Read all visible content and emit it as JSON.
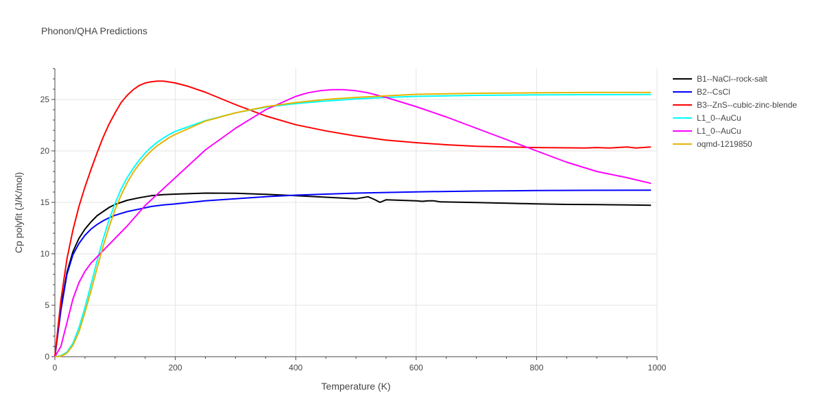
{
  "chart_data": {
    "type": "line",
    "title": "Phonon/QHA Predictions",
    "xlabel": "Temperature (K)",
    "ylabel": "Cp polyfit (J/K/mol)",
    "xlim": [
      0,
      1000
    ],
    "ylim": [
      0,
      28
    ],
    "xticks": [
      0,
      200,
      400,
      600,
      800,
      1000
    ],
    "yticks": [
      0,
      5,
      10,
      15,
      20,
      25
    ],
    "grid": true,
    "legend_position": "top-right",
    "series": [
      {
        "name": "B1--NaCl--rock-salt",
        "color": "#000000",
        "x": [
          0,
          10,
          20,
          30,
          40,
          50,
          60,
          70,
          80,
          90,
          100,
          110,
          120,
          140,
          160,
          180,
          200,
          250,
          300,
          350,
          400,
          450,
          500,
          510,
          520,
          530,
          540,
          550,
          600,
          610,
          620,
          630,
          640,
          700,
          750,
          800,
          850,
          900,
          950,
          990
        ],
        "y": [
          0,
          4.8,
          8.2,
          10.2,
          11.5,
          12.4,
          13.1,
          13.7,
          14.1,
          14.5,
          14.8,
          15.0,
          15.2,
          15.45,
          15.65,
          15.75,
          15.8,
          15.9,
          15.88,
          15.78,
          15.65,
          15.5,
          15.35,
          15.45,
          15.55,
          15.3,
          15.0,
          15.25,
          15.15,
          15.1,
          15.15,
          15.15,
          15.05,
          14.98,
          14.92,
          14.85,
          14.8,
          14.78,
          14.75,
          14.72
        ]
      },
      {
        "name": "B2--CsCl",
        "color": "#0000ff",
        "x": [
          0,
          10,
          20,
          30,
          40,
          50,
          60,
          70,
          80,
          90,
          100,
          120,
          140,
          160,
          180,
          200,
          250,
          300,
          350,
          400,
          450,
          500,
          600,
          700,
          800,
          900,
          990
        ],
        "y": [
          0,
          4.5,
          8.0,
          9.9,
          11.0,
          11.8,
          12.4,
          12.85,
          13.2,
          13.5,
          13.75,
          14.1,
          14.35,
          14.6,
          14.75,
          14.85,
          15.15,
          15.35,
          15.55,
          15.7,
          15.8,
          15.9,
          16.02,
          16.1,
          16.15,
          16.17,
          16.18
        ]
      },
      {
        "name": "B3--ZnS--cubic-zinc-blende",
        "color": "#ff0000",
        "x": [
          0,
          10,
          20,
          30,
          40,
          50,
          60,
          70,
          80,
          90,
          100,
          110,
          120,
          130,
          140,
          150,
          160,
          170,
          180,
          190,
          200,
          220,
          250,
          300,
          350,
          400,
          450,
          500,
          550,
          600,
          650,
          700,
          750,
          780,
          800,
          850,
          880,
          900,
          920,
          950,
          965,
          990
        ],
        "y": [
          0,
          5.5,
          9.5,
          12.3,
          14.6,
          16.5,
          18.2,
          19.8,
          21.3,
          22.6,
          23.7,
          24.7,
          25.4,
          25.95,
          26.35,
          26.6,
          26.72,
          26.78,
          26.78,
          26.7,
          26.6,
          26.3,
          25.7,
          24.5,
          23.4,
          22.55,
          21.95,
          21.45,
          21.05,
          20.8,
          20.6,
          20.45,
          20.38,
          20.35,
          20.33,
          20.3,
          20.28,
          20.33,
          20.28,
          20.38,
          20.28,
          20.38
        ]
      },
      {
        "name": "L1_0--AuCu",
        "color": "#00ffff",
        "x": [
          0,
          10,
          20,
          30,
          40,
          50,
          60,
          70,
          80,
          90,
          100,
          110,
          120,
          130,
          140,
          150,
          160,
          170,
          180,
          190,
          200,
          250,
          300,
          350,
          400,
          450,
          500,
          550,
          600,
          700,
          800,
          900,
          990
        ],
        "y": [
          0,
          0.1,
          0.45,
          1.3,
          2.8,
          4.8,
          7.0,
          9.3,
          11.4,
          13.3,
          14.9,
          16.3,
          17.4,
          18.3,
          19.1,
          19.8,
          20.35,
          20.85,
          21.25,
          21.6,
          21.9,
          22.95,
          23.7,
          24.25,
          24.6,
          24.85,
          25.05,
          25.2,
          25.3,
          25.4,
          25.45,
          25.47,
          25.48
        ]
      },
      {
        "name": "L1_0--AuCu",
        "color": "#ff00ff",
        "x": [
          0,
          10,
          20,
          30,
          40,
          50,
          60,
          70,
          80,
          100,
          120,
          150,
          200,
          250,
          300,
          350,
          400,
          420,
          440,
          460,
          480,
          500,
          520,
          550,
          600,
          650,
          700,
          750,
          800,
          850,
          900,
          950,
          990
        ],
        "y": [
          0,
          1.0,
          3.3,
          5.6,
          7.2,
          8.3,
          9.1,
          9.7,
          10.3,
          11.5,
          12.7,
          14.7,
          17.4,
          20.1,
          22.2,
          24.0,
          25.3,
          25.65,
          25.85,
          25.95,
          25.95,
          25.85,
          25.65,
          25.2,
          24.3,
          23.3,
          22.2,
          21.1,
          20.0,
          18.9,
          18.0,
          17.4,
          16.85
        ]
      },
      {
        "name": "oqmd-1219850",
        "color": "#e5b400",
        "x": [
          0,
          10,
          20,
          30,
          40,
          50,
          60,
          70,
          80,
          90,
          100,
          110,
          120,
          130,
          140,
          150,
          160,
          170,
          180,
          190,
          200,
          250,
          300,
          350,
          400,
          450,
          500,
          550,
          600,
          700,
          800,
          900,
          990
        ],
        "y": [
          0,
          0.05,
          0.35,
          1.1,
          2.4,
          4.3,
          6.4,
          8.6,
          10.7,
          12.6,
          14.3,
          15.7,
          16.9,
          17.9,
          18.7,
          19.4,
          20.0,
          20.5,
          20.9,
          21.3,
          21.6,
          22.9,
          23.7,
          24.3,
          24.7,
          25.0,
          25.2,
          25.35,
          25.5,
          25.6,
          25.65,
          25.68,
          25.68
        ]
      }
    ]
  }
}
